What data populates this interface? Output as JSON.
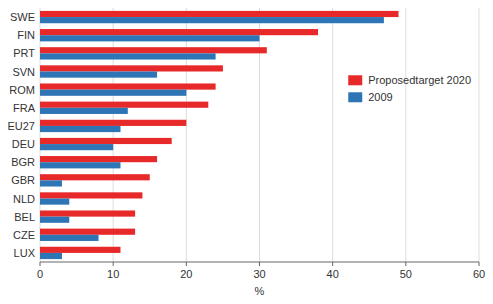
{
  "chart_data": {
    "type": "bar",
    "orientation": "horizontal",
    "categories": [
      "LUX",
      "CZE",
      "BEL",
      "NLD",
      "GBR",
      "BGR",
      "DEU",
      "EU27",
      "FRA",
      "ROM",
      "SVN",
      "PRT",
      "FIN",
      "SWE"
    ],
    "series": [
      {
        "name": "Proposedtarget 2020",
        "color": "#e8292a",
        "values": [
          11,
          13,
          13,
          14,
          15,
          16,
          18,
          20,
          23,
          24,
          25,
          31,
          38,
          49
        ]
      },
      {
        "name": "2009",
        "color": "#2e75b6",
        "values": [
          3,
          8,
          4,
          4,
          3,
          11,
          10,
          11,
          12,
          20,
          16,
          24,
          30,
          47
        ]
      }
    ],
    "x_label": "%",
    "xlim": [
      0,
      60
    ],
    "xticks": [
      0,
      10,
      20,
      30,
      40,
      50,
      60
    ],
    "grid": true,
    "legend": "right"
  }
}
